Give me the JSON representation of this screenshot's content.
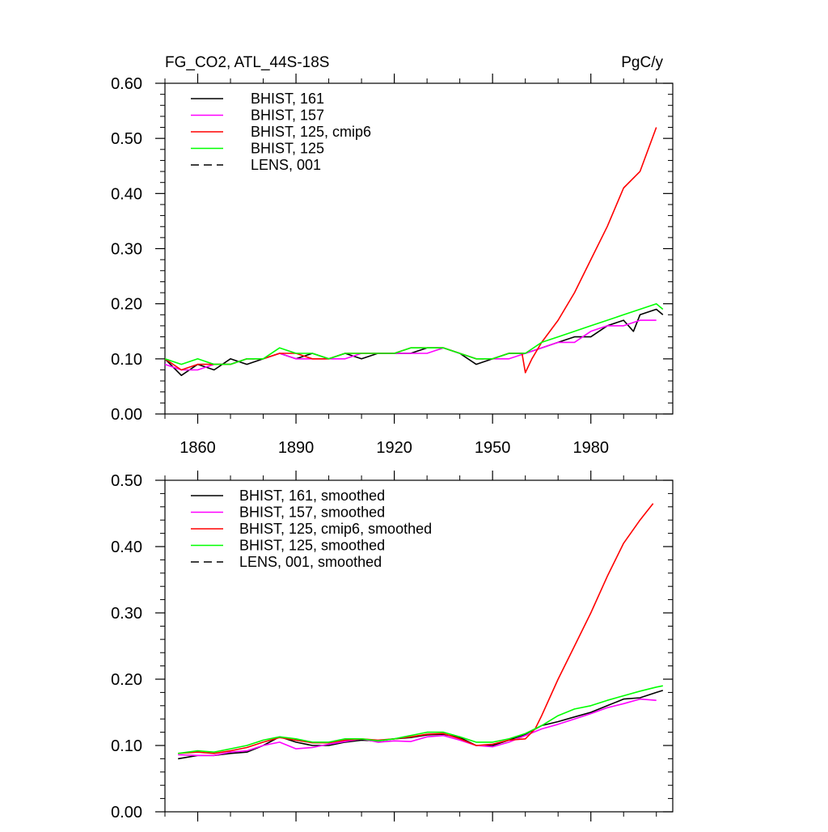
{
  "chart_data": [
    {
      "type": "line",
      "title_left": "FG_CO2, ATL_44S-18S",
      "title_right": "PgC/y",
      "xlim": [
        1850,
        2005
      ],
      "ylim": [
        0,
        0.6
      ],
      "x_ticks": [
        1860,
        1890,
        1920,
        1950,
        1980
      ],
      "y_ticks": [
        "0.00",
        "0.10",
        "0.20",
        "0.30",
        "0.40",
        "0.50",
        "0.60"
      ],
      "legend_position": "top-left",
      "series": [
        {
          "name": "BHIST, 161",
          "color": "#000000",
          "dash": "solid",
          "x": [
            1850,
            1855,
            1860,
            1865,
            1870,
            1875,
            1880,
            1885,
            1890,
            1895,
            1900,
            1905,
            1910,
            1915,
            1920,
            1925,
            1930,
            1935,
            1940,
            1945,
            1950,
            1955,
            1960,
            1965,
            1970,
            1975,
            1980,
            1985,
            1990,
            1993,
            1995,
            2000,
            2002
          ],
          "y": [
            0.1,
            0.07,
            0.09,
            0.08,
            0.1,
            0.09,
            0.1,
            0.11,
            0.1,
            0.11,
            0.1,
            0.11,
            0.1,
            0.11,
            0.11,
            0.11,
            0.12,
            0.12,
            0.11,
            0.09,
            0.1,
            0.11,
            0.11,
            0.12,
            0.13,
            0.14,
            0.14,
            0.16,
            0.17,
            0.15,
            0.18,
            0.19,
            0.18
          ]
        },
        {
          "name": "BHIST, 157",
          "color": "#ff00ff",
          "dash": "solid",
          "x": [
            1850,
            1855,
            1860,
            1865,
            1870,
            1875,
            1880,
            1885,
            1890,
            1895,
            1900,
            1905,
            1910,
            1915,
            1920,
            1925,
            1930,
            1935,
            1940,
            1945,
            1950,
            1955,
            1960,
            1965,
            1970,
            1975,
            1980,
            1985,
            1990,
            1995,
            2000
          ],
          "y": [
            0.09,
            0.08,
            0.08,
            0.09,
            0.09,
            0.1,
            0.1,
            0.11,
            0.1,
            0.1,
            0.1,
            0.1,
            0.11,
            0.11,
            0.11,
            0.11,
            0.11,
            0.12,
            0.11,
            0.1,
            0.1,
            0.1,
            0.11,
            0.12,
            0.13,
            0.13,
            0.15,
            0.16,
            0.16,
            0.17,
            0.17
          ]
        },
        {
          "name": "BHIST, 125, cmip6",
          "color": "#ff0000",
          "dash": "solid",
          "x": [
            1850,
            1855,
            1860,
            1865,
            1870,
            1875,
            1880,
            1885,
            1890,
            1895,
            1900,
            1905,
            1910,
            1915,
            1920,
            1925,
            1930,
            1935,
            1940,
            1945,
            1950,
            1955,
            1959,
            1960,
            1962,
            1965,
            1970,
            1975,
            1980,
            1985,
            1990,
            1995,
            2000
          ],
          "y": [
            0.1,
            0.08,
            0.09,
            0.09,
            0.09,
            0.1,
            0.1,
            0.11,
            0.11,
            0.1,
            0.1,
            0.11,
            0.11,
            0.11,
            0.11,
            0.12,
            0.12,
            0.12,
            0.11,
            0.1,
            0.1,
            0.11,
            0.11,
            0.075,
            0.1,
            0.13,
            0.17,
            0.22,
            0.28,
            0.34,
            0.41,
            0.44,
            0.52
          ]
        },
        {
          "name": "BHIST, 125",
          "color": "#00ff00",
          "dash": "solid",
          "x": [
            1850,
            1855,
            1860,
            1865,
            1870,
            1875,
            1880,
            1885,
            1890,
            1895,
            1900,
            1905,
            1910,
            1915,
            1920,
            1925,
            1930,
            1935,
            1940,
            1945,
            1950,
            1955,
            1960,
            1965,
            1970,
            1975,
            1980,
            1985,
            1990,
            1995,
            2000,
            2002
          ],
          "y": [
            0.1,
            0.09,
            0.1,
            0.09,
            0.09,
            0.1,
            0.1,
            0.12,
            0.11,
            0.11,
            0.1,
            0.11,
            0.11,
            0.11,
            0.11,
            0.12,
            0.12,
            0.12,
            0.11,
            0.1,
            0.1,
            0.11,
            0.11,
            0.13,
            0.14,
            0.15,
            0.16,
            0.17,
            0.18,
            0.19,
            0.2,
            0.19
          ]
        }
      ],
      "legend_only_series": [
        {
          "name": "LENS, 001",
          "color": "#000000",
          "dash": "dashed"
        }
      ]
    },
    {
      "type": "line",
      "xlim": [
        1850,
        2005
      ],
      "ylim": [
        0,
        0.5
      ],
      "y_ticks": [
        "0.00",
        "0.10",
        "0.20",
        "0.30",
        "0.40",
        "0.50"
      ],
      "legend_position": "top-left",
      "series": [
        {
          "name": "BHIST, 161, smoothed",
          "color": "#000000",
          "dash": "solid",
          "x": [
            1854,
            1860,
            1865,
            1870,
            1875,
            1880,
            1885,
            1890,
            1895,
            1900,
            1905,
            1910,
            1915,
            1920,
            1925,
            1930,
            1935,
            1940,
            1945,
            1950,
            1955,
            1960,
            1965,
            1970,
            1975,
            1980,
            1985,
            1990,
            1995,
            2000,
            2002
          ],
          "y": [
            0.08,
            0.085,
            0.085,
            0.088,
            0.09,
            0.1,
            0.113,
            0.105,
            0.1,
            0.1,
            0.105,
            0.108,
            0.107,
            0.11,
            0.112,
            0.116,
            0.117,
            0.112,
            0.1,
            0.1,
            0.108,
            0.117,
            0.13,
            0.136,
            0.143,
            0.15,
            0.16,
            0.17,
            0.172,
            0.18,
            0.183
          ]
        },
        {
          "name": "BHIST, 157, smoothed",
          "color": "#ff00ff",
          "dash": "solid",
          "x": [
            1854,
            1860,
            1865,
            1870,
            1875,
            1880,
            1885,
            1890,
            1895,
            1900,
            1905,
            1910,
            1915,
            1920,
            1925,
            1930,
            1935,
            1940,
            1945,
            1950,
            1955,
            1960,
            1965,
            1970,
            1975,
            1980,
            1985,
            1990,
            1995,
            2000
          ],
          "y": [
            0.086,
            0.085,
            0.085,
            0.09,
            0.092,
            0.1,
            0.105,
            0.095,
            0.097,
            0.102,
            0.106,
            0.11,
            0.105,
            0.107,
            0.106,
            0.113,
            0.115,
            0.108,
            0.1,
            0.098,
            0.105,
            0.115,
            0.125,
            0.132,
            0.14,
            0.148,
            0.157,
            0.163,
            0.17,
            0.168
          ]
        },
        {
          "name": "BHIST, 125, cmip6, smoothed",
          "color": "#ff0000",
          "dash": "solid",
          "x": [
            1854,
            1860,
            1865,
            1870,
            1875,
            1880,
            1885,
            1890,
            1895,
            1900,
            1905,
            1910,
            1915,
            1920,
            1925,
            1930,
            1935,
            1940,
            1945,
            1950,
            1955,
            1960,
            1963,
            1965,
            1970,
            1975,
            1980,
            1985,
            1990,
            1995,
            1999
          ],
          "y": [
            0.088,
            0.09,
            0.088,
            0.092,
            0.097,
            0.105,
            0.112,
            0.108,
            0.104,
            0.104,
            0.108,
            0.11,
            0.108,
            0.11,
            0.113,
            0.117,
            0.118,
            0.11,
            0.1,
            0.102,
            0.108,
            0.11,
            0.125,
            0.145,
            0.2,
            0.25,
            0.3,
            0.355,
            0.405,
            0.44,
            0.465
          ]
        },
        {
          "name": "BHIST, 125, smoothed",
          "color": "#00ff00",
          "dash": "solid",
          "x": [
            1854,
            1860,
            1865,
            1870,
            1875,
            1880,
            1885,
            1890,
            1895,
            1900,
            1905,
            1910,
            1915,
            1920,
            1925,
            1930,
            1935,
            1940,
            1945,
            1950,
            1955,
            1960,
            1965,
            1970,
            1975,
            1980,
            1985,
            1990,
            1995,
            2000,
            2002
          ],
          "y": [
            0.088,
            0.092,
            0.09,
            0.095,
            0.1,
            0.108,
            0.113,
            0.11,
            0.105,
            0.105,
            0.11,
            0.11,
            0.107,
            0.11,
            0.115,
            0.12,
            0.12,
            0.113,
            0.105,
            0.105,
            0.11,
            0.118,
            0.13,
            0.145,
            0.155,
            0.16,
            0.168,
            0.175,
            0.182,
            0.188,
            0.19
          ]
        }
      ],
      "legend_only_series": [
        {
          "name": "LENS, 001, smoothed",
          "color": "#000000",
          "dash": "dashed"
        }
      ]
    }
  ]
}
